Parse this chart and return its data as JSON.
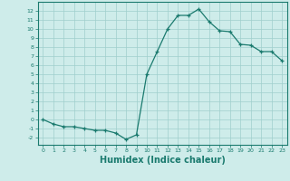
{
  "x": [
    0,
    1,
    2,
    3,
    4,
    5,
    6,
    7,
    8,
    9,
    10,
    11,
    12,
    13,
    14,
    15,
    16,
    17,
    18,
    19,
    20,
    21,
    22,
    23
  ],
  "y": [
    0.0,
    -0.5,
    -0.8,
    -0.8,
    -1.0,
    -1.2,
    -1.2,
    -1.5,
    -2.2,
    -1.7,
    5.0,
    7.5,
    10.0,
    11.5,
    11.5,
    12.2,
    10.8,
    9.8,
    9.7,
    8.3,
    8.2,
    7.5,
    7.5,
    6.5
  ],
  "line_color": "#1a7a6e",
  "marker": "+",
  "marker_size": 3.5,
  "linewidth": 0.9,
  "bg_color": "#ceecea",
  "grid_color": "#9fcfcc",
  "tick_color": "#1a7a6e",
  "xlabel": "Humidex (Indice chaleur)",
  "xlabel_fontsize": 7,
  "ylabel_ticks": [
    -2,
    -1,
    0,
    1,
    2,
    3,
    4,
    5,
    6,
    7,
    8,
    9,
    10,
    11,
    12
  ],
  "xlim": [
    -0.5,
    23.5
  ],
  "ylim": [
    -2.8,
    13.0
  ]
}
